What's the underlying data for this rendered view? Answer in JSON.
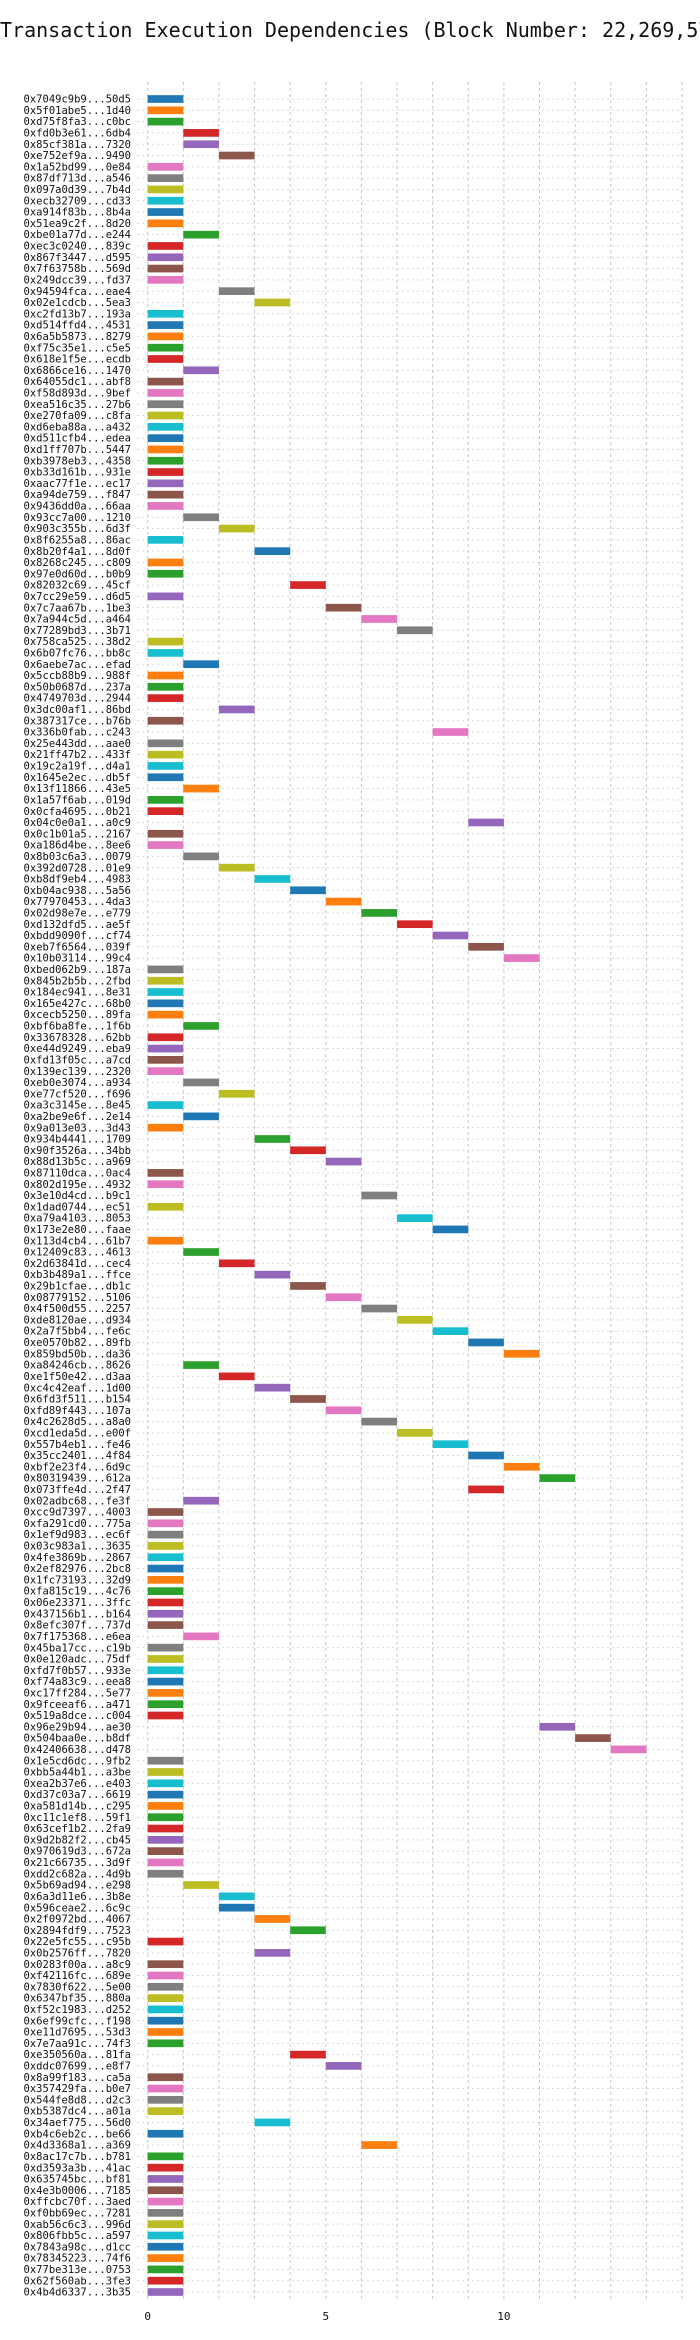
{
  "chart_data": {
    "type": "bar",
    "orientation": "horizontal-gantt",
    "title": "Transaction Execution Dependencies (Block Number: 22,269,577)",
    "xlabel": "",
    "ylabel": "",
    "xlim": [
      -0.3,
      15
    ],
    "xticks": [
      0,
      5,
      10
    ],
    "grid": true,
    "palette": [
      "#1f77b4",
      "#ff7f0e",
      "#2ca02c",
      "#d62728",
      "#9467bd",
      "#8c564b",
      "#e377c2",
      "#7f7f7f",
      "#bcbd22",
      "#17becf"
    ],
    "transactions": [
      {
        "hash": "0x7049c9b9...50d5",
        "start": 0
      },
      {
        "hash": "0x5f01abe5...1d40",
        "start": 0
      },
      {
        "hash": "0xd75f8fa3...c0bc",
        "start": 0
      },
      {
        "hash": "0xfd0b3e61...6db4",
        "start": 1
      },
      {
        "hash": "0x85cf381a...7320",
        "start": 1
      },
      {
        "hash": "0xe752ef9a...9490",
        "start": 2
      },
      {
        "hash": "0x1a52bd99...0e84",
        "start": 0
      },
      {
        "hash": "0x87df713d...a546",
        "start": 0
      },
      {
        "hash": "0x097a0d39...7b4d",
        "start": 0
      },
      {
        "hash": "0xecb32709...cd33",
        "start": 0
      },
      {
        "hash": "0xa914f83b...8b4a",
        "start": 0
      },
      {
        "hash": "0x51ea9c2f...8d20",
        "start": 0
      },
      {
        "hash": "0xbe01a77d...e244",
        "start": 1
      },
      {
        "hash": "0xec3c0240...839c",
        "start": 0
      },
      {
        "hash": "0x867f3447...d595",
        "start": 0
      },
      {
        "hash": "0x7f63758b...569d",
        "start": 0
      },
      {
        "hash": "0x249dcc39...fd37",
        "start": 0
      },
      {
        "hash": "0x94594fca...eae4",
        "start": 2
      },
      {
        "hash": "0x02e1cdcb...5ea3",
        "start": 3
      },
      {
        "hash": "0xc2fd13b7...193a",
        "start": 0
      },
      {
        "hash": "0xd514ffd4...4531",
        "start": 0
      },
      {
        "hash": "0x6a5b5873...8279",
        "start": 0
      },
      {
        "hash": "0xf75c35e1...c5e5",
        "start": 0
      },
      {
        "hash": "0x618e1f5e...ecdb",
        "start": 0
      },
      {
        "hash": "0x6866ce16...1470",
        "start": 1
      },
      {
        "hash": "0x64055dc1...abf8",
        "start": 0
      },
      {
        "hash": "0xf58d893d...9bef",
        "start": 0
      },
      {
        "hash": "0xea516c35...27b6",
        "start": 0
      },
      {
        "hash": "0xe270fa09...c8fa",
        "start": 0
      },
      {
        "hash": "0xd6eba88a...a432",
        "start": 0
      },
      {
        "hash": "0xd511cfb4...edea",
        "start": 0
      },
      {
        "hash": "0xd1ff707b...5447",
        "start": 0
      },
      {
        "hash": "0xb3978eb3...4358",
        "start": 0
      },
      {
        "hash": "0xb33d161b...931e",
        "start": 0
      },
      {
        "hash": "0xaac77f1e...ec17",
        "start": 0
      },
      {
        "hash": "0xa94de759...f847",
        "start": 0
      },
      {
        "hash": "0x9436dd0a...66aa",
        "start": 0
      },
      {
        "hash": "0x93cc7a00...1210",
        "start": 1
      },
      {
        "hash": "0x903c355b...6d3f",
        "start": 2
      },
      {
        "hash": "0x8f6255a8...86ac",
        "start": 0
      },
      {
        "hash": "0x8b20f4a1...8d0f",
        "start": 3
      },
      {
        "hash": "0x8268c245...c809",
        "start": 0
      },
      {
        "hash": "0x97e0d60d...b0b9",
        "start": 0
      },
      {
        "hash": "0x82032c69...45cf",
        "start": 4
      },
      {
        "hash": "0x7cc29e59...d6d5",
        "start": 0
      },
      {
        "hash": "0x7c7aa67b...1be3",
        "start": 5
      },
      {
        "hash": "0x7a944c5d...a464",
        "start": 6
      },
      {
        "hash": "0x77289bd3...3b71",
        "start": 7
      },
      {
        "hash": "0x758ca525...38d2",
        "start": 0
      },
      {
        "hash": "0x6b07fc76...bb8c",
        "start": 0
      },
      {
        "hash": "0x6aebe7ac...efad",
        "start": 1
      },
      {
        "hash": "0x5ccb88b9...988f",
        "start": 0
      },
      {
        "hash": "0x50b0687d...237a",
        "start": 0
      },
      {
        "hash": "0x4749703d...2944",
        "start": 0
      },
      {
        "hash": "0x3dc00af1...86bd",
        "start": 2
      },
      {
        "hash": "0x387317ce...b76b",
        "start": 0
      },
      {
        "hash": "0x336b0fab...c243",
        "start": 8
      },
      {
        "hash": "0x25e443dd...aae0",
        "start": 0
      },
      {
        "hash": "0x21ff47b2...433f",
        "start": 0
      },
      {
        "hash": "0x19c2a19f...d4a1",
        "start": 0
      },
      {
        "hash": "0x1645e2ec...db5f",
        "start": 0
      },
      {
        "hash": "0x13f11866...43e5",
        "start": 1
      },
      {
        "hash": "0x1a57f6ab...019d",
        "start": 0
      },
      {
        "hash": "0x0cfa4695...0b21",
        "start": 0
      },
      {
        "hash": "0x04c0e0a1...a0c9",
        "start": 9
      },
      {
        "hash": "0x0c1b01a5...2167",
        "start": 0
      },
      {
        "hash": "0xa186d4be...8ee6",
        "start": 0
      },
      {
        "hash": "0x8b03c6a3...0079",
        "start": 1
      },
      {
        "hash": "0x392d0728...01e9",
        "start": 2
      },
      {
        "hash": "0xb8df9eb4...4983",
        "start": 3
      },
      {
        "hash": "0xb04ac938...5a56",
        "start": 4
      },
      {
        "hash": "0x77970453...4da3",
        "start": 5
      },
      {
        "hash": "0x02d98e7e...e779",
        "start": 6
      },
      {
        "hash": "0xd132dfd5...ae5f",
        "start": 7
      },
      {
        "hash": "0xbdd9090f...cf74",
        "start": 8
      },
      {
        "hash": "0xeb7f6564...039f",
        "start": 9
      },
      {
        "hash": "0x10b03114...99c4",
        "start": 10
      },
      {
        "hash": "0xbed062b9...187a",
        "start": 0
      },
      {
        "hash": "0x845b2b5b...2fbd",
        "start": 0
      },
      {
        "hash": "0x184ec941...8e31",
        "start": 0
      },
      {
        "hash": "0x165e427c...68b0",
        "start": 0
      },
      {
        "hash": "0xcecb5250...89fa",
        "start": 0
      },
      {
        "hash": "0xbf6ba8fe...1f6b",
        "start": 1
      },
      {
        "hash": "0x33678328...62bb",
        "start": 0
      },
      {
        "hash": "0xe44d9249...eba9",
        "start": 0
      },
      {
        "hash": "0xfd13f05c...a7cd",
        "start": 0
      },
      {
        "hash": "0x139ec139...2320",
        "start": 0
      },
      {
        "hash": "0xeb0e3074...a934",
        "start": 1
      },
      {
        "hash": "0xe77cf520...f696",
        "start": 2
      },
      {
        "hash": "0xa3c3145e...8e45",
        "start": 0
      },
      {
        "hash": "0xa2be9e6f...2e14",
        "start": 1
      },
      {
        "hash": "0x9a013e03...3d43",
        "start": 0
      },
      {
        "hash": "0x934b4441...1709",
        "start": 3
      },
      {
        "hash": "0x90f3526a...34bb",
        "start": 4
      },
      {
        "hash": "0x88d13b5c...a969",
        "start": 5
      },
      {
        "hash": "0x87110dca...0ac4",
        "start": 0
      },
      {
        "hash": "0x802d195e...4932",
        "start": 0
      },
      {
        "hash": "0x3e10d4cd...b9c1",
        "start": 6
      },
      {
        "hash": "0x1dad0744...ec51",
        "start": 0
      },
      {
        "hash": "0xa79a4103...8053",
        "start": 7
      },
      {
        "hash": "0x173e2e80...faae",
        "start": 8
      },
      {
        "hash": "0x113d4cb4...61b7",
        "start": 0
      },
      {
        "hash": "0x12409c83...4613",
        "start": 1
      },
      {
        "hash": "0x2d63841d...cec4",
        "start": 2
      },
      {
        "hash": "0xb3b489a1...ffce",
        "start": 3
      },
      {
        "hash": "0x29b1cfae...db1c",
        "start": 4
      },
      {
        "hash": "0x08779152...5106",
        "start": 5
      },
      {
        "hash": "0x4f500d55...2257",
        "start": 6
      },
      {
        "hash": "0xde8120ae...d934",
        "start": 7
      },
      {
        "hash": "0x2a7f5bb4...fe6c",
        "start": 8
      },
      {
        "hash": "0xe0570b82...89fb",
        "start": 9
      },
      {
        "hash": "0x859bd50b...da36",
        "start": 10
      },
      {
        "hash": "0xa84246cb...8626",
        "start": 1
      },
      {
        "hash": "0xe1f50e42...d3aa",
        "start": 2
      },
      {
        "hash": "0xc4c42eaf...1d00",
        "start": 3
      },
      {
        "hash": "0x6fd3f511...b154",
        "start": 4
      },
      {
        "hash": "0xfd89f443...107a",
        "start": 5
      },
      {
        "hash": "0x4c2628d5...a8a0",
        "start": 6
      },
      {
        "hash": "0xcd1eda5d...e00f",
        "start": 7
      },
      {
        "hash": "0x557b4eb1...fe46",
        "start": 8
      },
      {
        "hash": "0x35cc2401...4f84",
        "start": 9
      },
      {
        "hash": "0xbf2e23f4...6d9c",
        "start": 10
      },
      {
        "hash": "0x80319439...612a",
        "start": 11
      },
      {
        "hash": "0x073ffe4d...2f47",
        "start": 9
      },
      {
        "hash": "0x02adbc68...fe3f",
        "start": 1
      },
      {
        "hash": "0xcc9d7397...4003",
        "start": 0
      },
      {
        "hash": "0xfa291cd0...775a",
        "start": 0
      },
      {
        "hash": "0x1ef9d983...ec6f",
        "start": 0
      },
      {
        "hash": "0x03c983a1...3635",
        "start": 0
      },
      {
        "hash": "0x4fe3869b...2867",
        "start": 0
      },
      {
        "hash": "0x2ef82976...2bc8",
        "start": 0
      },
      {
        "hash": "0x1fc73193...32d9",
        "start": 0
      },
      {
        "hash": "0xfa815c19...4c76",
        "start": 0
      },
      {
        "hash": "0x06e23371...3ffc",
        "start": 0
      },
      {
        "hash": "0x437156b1...b164",
        "start": 0
      },
      {
        "hash": "0x8efc307f...737d",
        "start": 0
      },
      {
        "hash": "0x7f175368...e6ea",
        "start": 1
      },
      {
        "hash": "0x45ba17cc...c19b",
        "start": 0
      },
      {
        "hash": "0x0e120adc...75df",
        "start": 0
      },
      {
        "hash": "0xfd7f0b57...933e",
        "start": 0
      },
      {
        "hash": "0xf74a83c9...eea8",
        "start": 0
      },
      {
        "hash": "0xc17ff284...5e77",
        "start": 0
      },
      {
        "hash": "0x9fceeaf6...a471",
        "start": 0
      },
      {
        "hash": "0x519a8dce...c004",
        "start": 0
      },
      {
        "hash": "0x96e29b94...ae30",
        "start": 11
      },
      {
        "hash": "0x504baa0e...b8df",
        "start": 12
      },
      {
        "hash": "0x42406638...d478",
        "start": 13
      },
      {
        "hash": "0x1e5cd6dc...9fb2",
        "start": 0
      },
      {
        "hash": "0xbb5a44b1...a3be",
        "start": 0
      },
      {
        "hash": "0xea2b37e6...e403",
        "start": 0
      },
      {
        "hash": "0xd37c03a7...6619",
        "start": 0
      },
      {
        "hash": "0xa581d14b...c295",
        "start": 0
      },
      {
        "hash": "0xc11c1ef8...59f1",
        "start": 0
      },
      {
        "hash": "0x63cef1b2...2fa9",
        "start": 0
      },
      {
        "hash": "0x9d2b82f2...cb45",
        "start": 0
      },
      {
        "hash": "0x970619d3...672a",
        "start": 0
      },
      {
        "hash": "0x21c66735...3d9f",
        "start": 0
      },
      {
        "hash": "0xdd2c682a...4d9b",
        "start": 0
      },
      {
        "hash": "0x5b69ad94...e298",
        "start": 1
      },
      {
        "hash": "0x6a3d11e6...3b8e",
        "start": 2
      },
      {
        "hash": "0x596ceae2...6c9c",
        "start": 2
      },
      {
        "hash": "0x2f0972bd...4067",
        "start": 3
      },
      {
        "hash": "0x2894fdf9...7523",
        "start": 4
      },
      {
        "hash": "0x22e5fc55...c95b",
        "start": 0
      },
      {
        "hash": "0x0b2576ff...7820",
        "start": 3
      },
      {
        "hash": "0x0283f00a...a8c9",
        "start": 0
      },
      {
        "hash": "0xf42116fc...689e",
        "start": 0
      },
      {
        "hash": "0x7830f622...5e00",
        "start": 0
      },
      {
        "hash": "0x6347bf35...880a",
        "start": 0
      },
      {
        "hash": "0xf52c1983...d252",
        "start": 0
      },
      {
        "hash": "0x6ef99cfc...f198",
        "start": 0
      },
      {
        "hash": "0xe11d7695...53d3",
        "start": 0
      },
      {
        "hash": "0x7e7aa91c...74f3",
        "start": 0
      },
      {
        "hash": "0xe350560a...81fa",
        "start": 4
      },
      {
        "hash": "0xddc07699...e8f7",
        "start": 5
      },
      {
        "hash": "0x8a99f183...ca5a",
        "start": 0
      },
      {
        "hash": "0x357429fa...b0e7",
        "start": 0
      },
      {
        "hash": "0x544fe8d8...d2c3",
        "start": 0
      },
      {
        "hash": "0xb5387dc4...a01a",
        "start": 0
      },
      {
        "hash": "0x34aef775...56d0",
        "start": 3
      },
      {
        "hash": "0xb4c6eb2c...be66",
        "start": 0
      },
      {
        "hash": "0x4d3368a1...a369",
        "start": 6
      },
      {
        "hash": "0x8ac17c7b...b781",
        "start": 0
      },
      {
        "hash": "0xd3593a3b...41ac",
        "start": 0
      },
      {
        "hash": "0x635745bc...bf81",
        "start": 0
      },
      {
        "hash": "0x4e3b0006...7185",
        "start": 0
      },
      {
        "hash": "0xffcbc70f...3aed",
        "start": 0
      },
      {
        "hash": "0xf0bb69ec...7281",
        "start": 0
      },
      {
        "hash": "0xab56c6c3...996d",
        "start": 0
      },
      {
        "hash": "0x806fbb5c...a597",
        "start": 0
      },
      {
        "hash": "0x7843a98c...d1cc",
        "start": 0
      },
      {
        "hash": "0x78345223...74f6",
        "start": 0
      },
      {
        "hash": "0x77be313e...0753",
        "start": 0
      },
      {
        "hash": "0x62f560ab...3fe3",
        "start": 0
      },
      {
        "hash": "0x4b4d6337...3b35",
        "start": 0
      }
    ]
  }
}
